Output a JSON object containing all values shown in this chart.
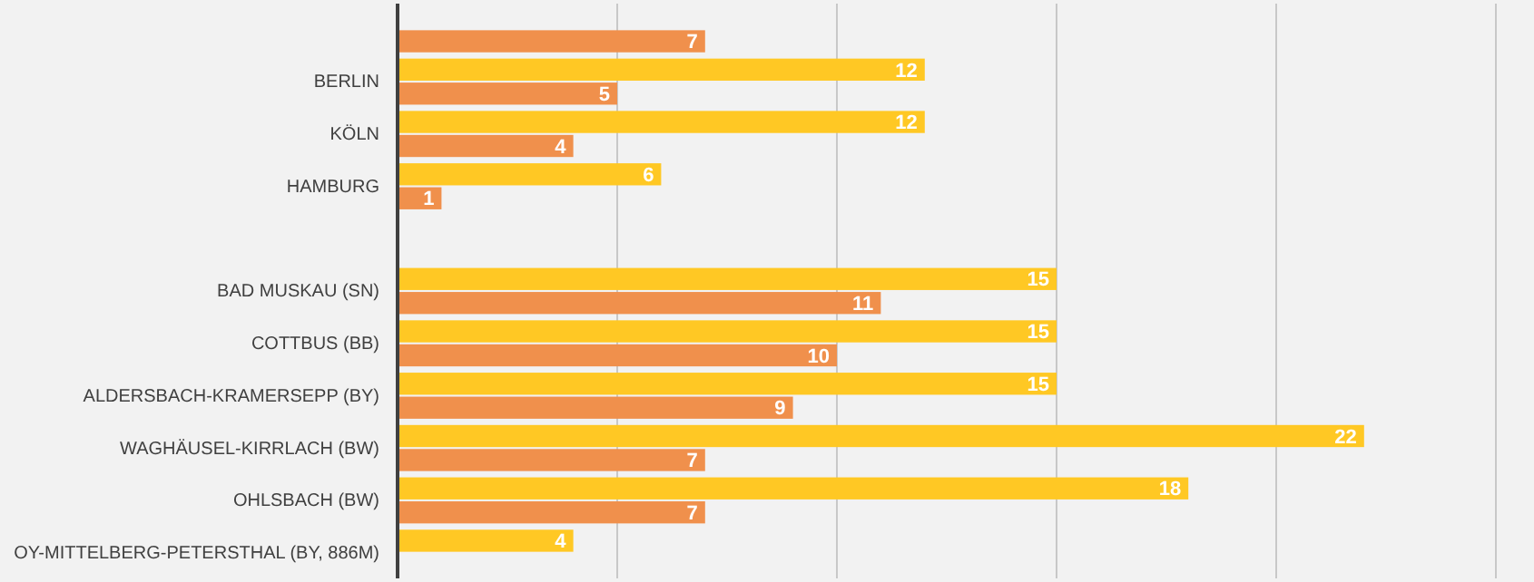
{
  "chart_data": {
    "type": "bar",
    "orientation": "horizontal",
    "categories": [
      null,
      "BERLIN",
      "KÖLN",
      "HAMBURG",
      null,
      "BAD MUSKAU (SN)",
      "COTTBUS (BB)",
      "ALDERSBACH-KRAMERSEPP (BY)",
      "WAGHÄUSEL-KIRRLACH (BW)",
      "OHLSBACH (BW)",
      "OY-MITTELBERG-PETERSTHAL (BY, 886M)"
    ],
    "series": [
      {
        "color": "#ffc824",
        "values": [
          null,
          12,
          12,
          6,
          null,
          15,
          15,
          15,
          22,
          18,
          4
        ]
      },
      {
        "color": "#f0904c",
        "values": [
          7,
          5,
          4,
          1,
          null,
          11,
          10,
          9,
          7,
          7,
          null
        ]
      }
    ],
    "xlim": [
      0,
      25
    ],
    "xticks": [
      {
        "value": 0,
        "label": null
      },
      {
        "value": 5,
        "label": null
      },
      {
        "value": 10,
        "label": null
      },
      {
        "value": 15,
        "label": null
      },
      {
        "value": 20,
        "label": null
      },
      {
        "value": 25,
        "label": null
      }
    ],
    "grid": "x",
    "tick_labels": "y",
    "data_labels": true
  }
}
